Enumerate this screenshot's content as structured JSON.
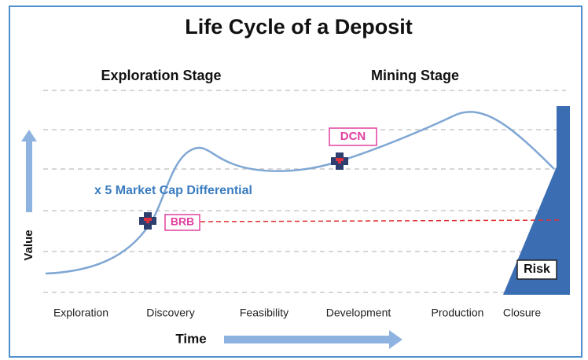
{
  "header": {
    "title": "Life Cycle of a Deposit"
  },
  "stages": [
    "Exploration Stage",
    "Mining Stage"
  ],
  "phases": [
    "Exploration",
    "Discovery",
    "Feasibility",
    "Development",
    "Production",
    "Closure"
  ],
  "axes": {
    "x": "Time",
    "y": "Value"
  },
  "markers": [
    "BRB",
    "DCN"
  ],
  "annotation": "x 5 Market Cap Differential",
  "risk": "Risk"
}
